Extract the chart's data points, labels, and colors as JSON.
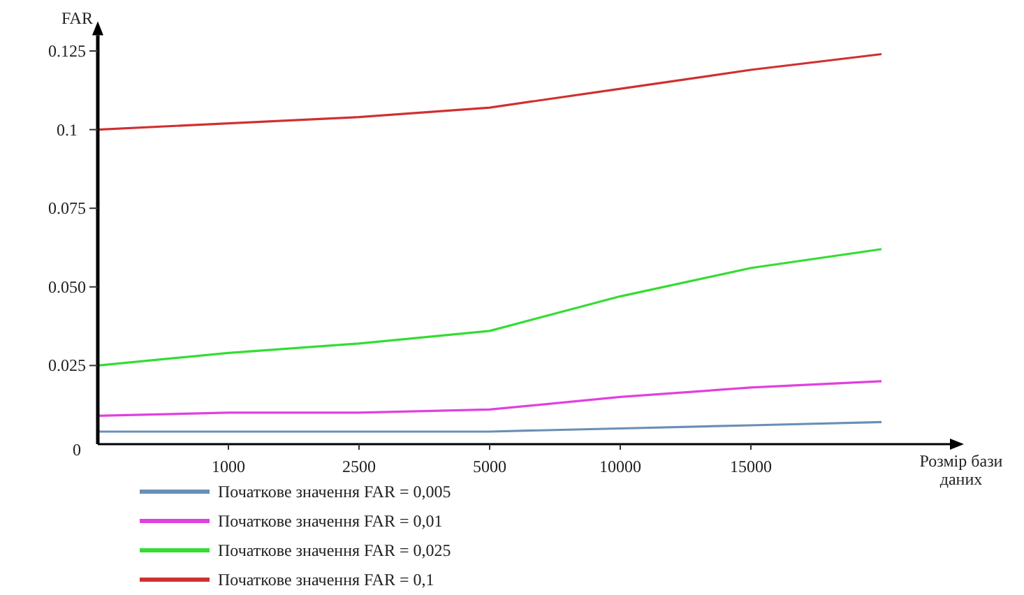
{
  "chart_data": {
    "type": "line",
    "ylabel": "FAR",
    "xlabel": "Розмір бази даних",
    "categories": [
      null,
      "1000",
      "2500",
      "5000",
      "10000",
      "15000",
      null
    ],
    "ylim": [
      0,
      0.13
    ],
    "yticks": [
      0,
      0.025,
      {
        "value": 0.05,
        "label": "0.050"
      },
      0.075,
      0.1,
      0.125
    ],
    "grid": false,
    "legend": "bottom",
    "marker": "none",
    "line_style": "solid",
    "series": [
      {
        "name": "Початкове значення FAR = 0,005",
        "color": "#6a8fb5",
        "values": [
          0.004,
          0.004,
          0.004,
          0.004,
          0.005,
          0.006,
          0.007
        ]
      },
      {
        "name": "Початкове значення FAR = 0,01",
        "color": "#e040e0",
        "values": [
          0.009,
          0.01,
          0.01,
          0.011,
          0.015,
          0.018,
          0.02
        ]
      },
      {
        "name": "Початкове значення FAR = 0,025",
        "color": "#33dd33",
        "values": [
          0.025,
          0.029,
          0.032,
          0.036,
          0.047,
          0.056,
          0.062
        ]
      },
      {
        "name": "Початкове значення FAR = 0,1",
        "color": "#d03030",
        "values": [
          0.1,
          0.102,
          0.104,
          0.107,
          0.113,
          0.119,
          0.124
        ]
      }
    ]
  }
}
